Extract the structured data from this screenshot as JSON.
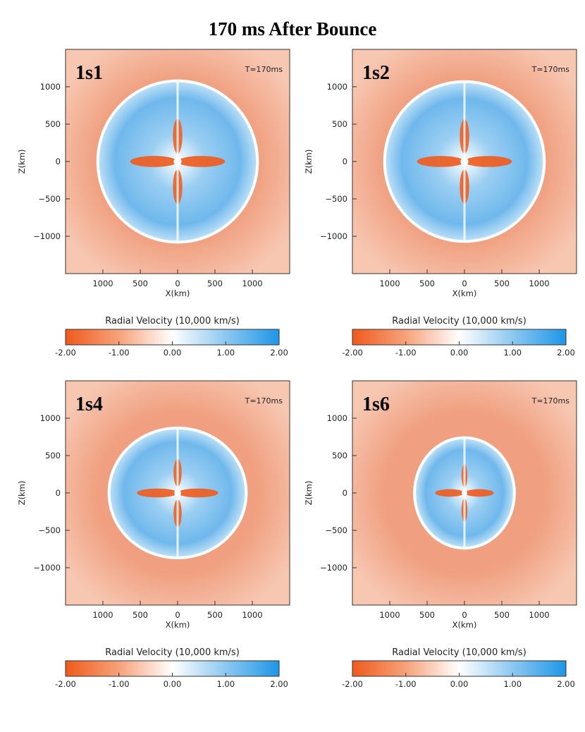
{
  "title": "170 ms After Bounce",
  "colors": {
    "negative": "#ef5a1c",
    "zero": "#ffffff",
    "positive": "#1e96e6",
    "ambient": "#f2a688",
    "axis": "#333333"
  },
  "chart_data": [
    {
      "type": "heatmap",
      "panel_label": "1s1",
      "time_label": "T=170ms",
      "xlabel": "X(km)",
      "ylabel": "Z(km)",
      "x_ticks": [
        "1000",
        "500",
        "0",
        "500",
        "1000"
      ],
      "y_ticks": [
        "1000",
        "500",
        "0",
        "−500",
        "−1000"
      ],
      "xlim": [
        -1500,
        1500
      ],
      "ylim": [
        -1500,
        1500
      ],
      "shock_radius_x_km": 1050,
      "shock_radius_z_km": 1060,
      "colorbar": {
        "label": "Radial Velocity (10,000 km/s)",
        "ticks": [
          "-2.00",
          "-1.00",
          "0.00",
          "1.00",
          "2.00"
        ],
        "range": [
          -2,
          2
        ]
      }
    },
    {
      "type": "heatmap",
      "panel_label": "1s2",
      "time_label": "T=170ms",
      "xlabel": "X(km)",
      "ylabel": "Z(km)",
      "x_ticks": [
        "1000",
        "500",
        "0",
        "500",
        "1000"
      ],
      "y_ticks": [
        "1000",
        "500",
        "0",
        "−500",
        "−1000"
      ],
      "xlim": [
        -1500,
        1500
      ],
      "ylim": [
        -1500,
        1500
      ],
      "shock_radius_x_km": 1050,
      "shock_radius_z_km": 1050,
      "colorbar": {
        "label": "Radial Velocity (10,000 km/s)",
        "ticks": [
          "-2.00",
          "-1.00",
          "0.00",
          "1.00",
          "2.00"
        ],
        "range": [
          -2,
          2
        ]
      }
    },
    {
      "type": "heatmap",
      "panel_label": "1s4",
      "time_label": "T=170ms",
      "xlabel": "X(km)",
      "ylabel": "Z(km)",
      "x_ticks": [
        "1000",
        "500",
        "0",
        "500",
        "1000"
      ],
      "y_ticks": [
        "1000",
        "500",
        "0",
        "−500",
        "−1000"
      ],
      "xlim": [
        -1500,
        1500
      ],
      "ylim": [
        -1500,
        1500
      ],
      "shock_radius_x_km": 900,
      "shock_radius_z_km": 850,
      "colorbar": {
        "label": "Radial Velocity (10,000 km/s)",
        "ticks": [
          "-2.00",
          "-1.00",
          "0.00",
          "1.00",
          "2.00"
        ],
        "range": [
          -2,
          2
        ]
      }
    },
    {
      "type": "heatmap",
      "panel_label": "1s6",
      "time_label": "T=170ms",
      "xlabel": "X(km)",
      "ylabel": "Z(km)",
      "x_ticks": [
        "1000",
        "500",
        "0",
        "500",
        "1000"
      ],
      "y_ticks": [
        "1000",
        "500",
        "0",
        "−500",
        "−1000"
      ],
      "xlim": [
        -1500,
        1500
      ],
      "ylim": [
        -1500,
        1500
      ],
      "shock_radius_x_km": 650,
      "shock_radius_z_km": 720,
      "colorbar": {
        "label": "Radial Velocity (10,000 km/s)",
        "ticks": [
          "-2.00",
          "-1.00",
          "0.00",
          "1.00",
          "2.00"
        ],
        "range": [
          -2,
          2
        ]
      }
    }
  ]
}
